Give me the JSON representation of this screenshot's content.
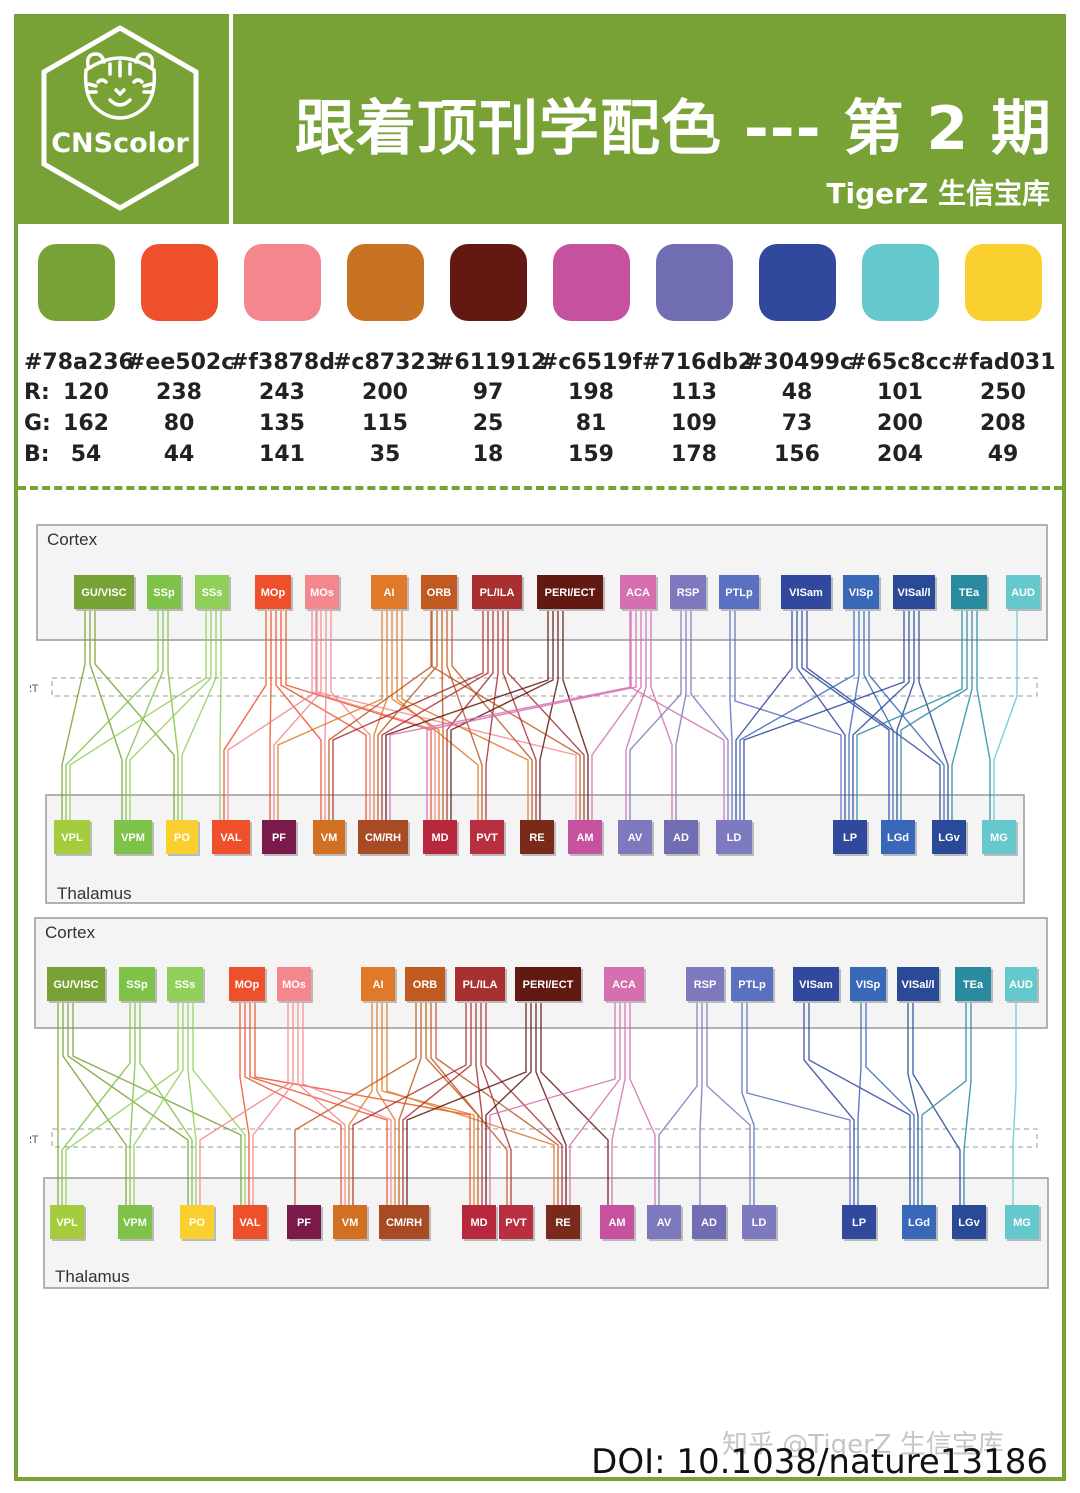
{
  "header": {
    "logo_text": "CNScolor",
    "title": "跟着顶刊学配色 --- 第 2 期",
    "subtitle": "TigerZ 生信宝库",
    "bg_color": "#78a236"
  },
  "palette": {
    "row_labels": {
      "r": "R:",
      "g": "G:",
      "b": "B:"
    },
    "colors": [
      {
        "hex": "#78a236",
        "r": "120",
        "g": "162",
        "b": "54"
      },
      {
        "hex": "#ee502c",
        "r": "238",
        "g": "80",
        "b": "44"
      },
      {
        "hex": "#f3878d",
        "r": "243",
        "g": "135",
        "b": "141"
      },
      {
        "hex": "#c87323",
        "r": "200",
        "g": "115",
        "b": "35"
      },
      {
        "hex": "#611912",
        "r": "97",
        "g": "25",
        "b": "18"
      },
      {
        "hex": "#c6519f",
        "r": "198",
        "g": "81",
        "b": "159"
      },
      {
        "hex": "#716db2",
        "r": "113",
        "g": "109",
        "b": "178"
      },
      {
        "hex": "#30499c",
        "r": "48",
        "g": "73",
        "b": "156"
      },
      {
        "hex": "#65c8cc",
        "r": "101",
        "g": "200",
        "b": "204"
      },
      {
        "hex": "#fad031",
        "r": "250",
        "g": "208",
        "b": "49"
      }
    ]
  },
  "diagrams": [
    {
      "cortex_label": "Cortex",
      "rt_label": "RT",
      "thalamus_label": "Thalamus",
      "cortex_nodes": [
        {
          "label": "GU/VISC",
          "color": "#78a236"
        },
        {
          "label": "SSp",
          "color": "#7fc24a"
        },
        {
          "label": "SSs",
          "color": "#8fcf5a"
        },
        {
          "label": "MOp",
          "color": "#ee502c"
        },
        {
          "label": "MOs",
          "color": "#f3878d"
        },
        {
          "label": "AI",
          "color": "#e07a2a"
        },
        {
          "label": "ORB",
          "color": "#c05a20"
        },
        {
          "label": "PL/ILA",
          "color": "#a83030"
        },
        {
          "label": "PERI/ECT",
          "color": "#611912"
        },
        {
          "label": "ACA",
          "color": "#d56fb0"
        },
        {
          "label": "RSP",
          "color": "#7d79bc"
        },
        {
          "label": "PTLp",
          "color": "#5a70c0"
        },
        {
          "label": "VISam",
          "color": "#30499c"
        },
        {
          "label": "VISp",
          "color": "#3a68b8"
        },
        {
          "label": "VISal/l",
          "color": "#2a4a98"
        },
        {
          "label": "TEa",
          "color": "#2a8aa0"
        },
        {
          "label": "AUD",
          "color": "#65c8cc"
        }
      ],
      "thalamus_nodes": [
        {
          "label": "VPL",
          "color": "#a4cc3c"
        },
        {
          "label": "VPM",
          "color": "#7fc24a"
        },
        {
          "label": "PO",
          "color": "#fad031"
        },
        {
          "label": "VAL",
          "color": "#ee502c"
        },
        {
          "label": "PF",
          "color": "#7a1a4a"
        },
        {
          "label": "VM",
          "color": "#d07020"
        },
        {
          "label": "CM/RH",
          "color": "#a84a24"
        },
        {
          "label": "MD",
          "color": "#b8283c"
        },
        {
          "label": "PVT",
          "color": "#b83040"
        },
        {
          "label": "RE",
          "color": "#7a2a1a"
        },
        {
          "label": "AM",
          "color": "#c6519f"
        },
        {
          "label": "AV",
          "color": "#7d79bc"
        },
        {
          "label": "AD",
          "color": "#716db2"
        },
        {
          "label": "LD",
          "color": "#7e7ac0"
        },
        {
          "label": "LP",
          "color": "#30499c"
        },
        {
          "label": "LGd",
          "color": "#3a68b8"
        },
        {
          "label": "LGv",
          "color": "#2a4a98"
        },
        {
          "label": "MG",
          "color": "#65c8cc"
        }
      ]
    },
    {
      "cortex_label": "Cortex",
      "rt_label": "RT",
      "thalamus_label": "Thalamus",
      "cortex_nodes": [
        {
          "label": "GU/VISC",
          "color": "#78a236"
        },
        {
          "label": "SSp",
          "color": "#7fc24a"
        },
        {
          "label": "SSs",
          "color": "#8fcf5a"
        },
        {
          "label": "MOp",
          "color": "#ee502c"
        },
        {
          "label": "MOs",
          "color": "#f3878d"
        },
        {
          "label": "AI",
          "color": "#e07a2a"
        },
        {
          "label": "ORB",
          "color": "#c05a20"
        },
        {
          "label": "PL/ILA",
          "color": "#a83030"
        },
        {
          "label": "PERI/ECT",
          "color": "#611912"
        },
        {
          "label": "ACA",
          "color": "#d56fb0"
        },
        {
          "label": "RSP",
          "color": "#7d79bc"
        },
        {
          "label": "PTLp",
          "color": "#5a70c0"
        },
        {
          "label": "VISam",
          "color": "#30499c"
        },
        {
          "label": "VISp",
          "color": "#3a68b8"
        },
        {
          "label": "VISal/l",
          "color": "#2a4a98"
        },
        {
          "label": "TEa",
          "color": "#2a8aa0"
        },
        {
          "label": "AUD",
          "color": "#65c8cc"
        }
      ],
      "thalamus_nodes": [
        {
          "label": "VPL",
          "color": "#a4cc3c"
        },
        {
          "label": "VPM",
          "color": "#7fc24a"
        },
        {
          "label": "PO",
          "color": "#fad031"
        },
        {
          "label": "VAL",
          "color": "#ee502c"
        },
        {
          "label": "PF",
          "color": "#7a1a4a"
        },
        {
          "label": "VM",
          "color": "#d07020"
        },
        {
          "label": "CM/RH",
          "color": "#a84a24"
        },
        {
          "label": "MD",
          "color": "#b8283c"
        },
        {
          "label": "PVT",
          "color": "#b83040"
        },
        {
          "label": "RE",
          "color": "#7a2a1a"
        },
        {
          "label": "AM",
          "color": "#c6519f"
        },
        {
          "label": "AV",
          "color": "#7d79bc"
        },
        {
          "label": "AD",
          "color": "#716db2"
        },
        {
          "label": "LD",
          "color": "#7e7ac0"
        },
        {
          "label": "LP",
          "color": "#30499c"
        },
        {
          "label": "LGd",
          "color": "#3a68b8"
        },
        {
          "label": "LGv",
          "color": "#2a4a98"
        },
        {
          "label": "MG",
          "color": "#65c8cc"
        }
      ]
    }
  ],
  "footer": {
    "doi": "DOI: 10.1038/nature13186",
    "watermark": "知乎 @TigerZ 生信宝库"
  }
}
